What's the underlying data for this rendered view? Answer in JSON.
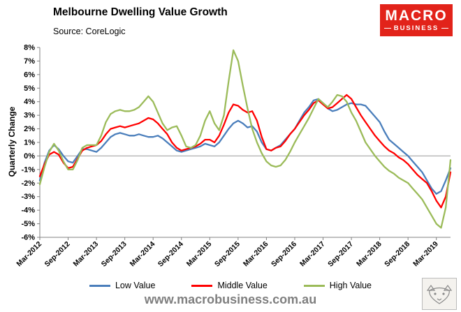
{
  "header": {
    "title": "Melbourne Dwelling Value Growth",
    "source": "Source: CoreLogic"
  },
  "logo": {
    "line1": "MACRO",
    "line2": "BUSINESS",
    "bg_color": "#e2231a"
  },
  "watermark": "www.macrobusiness.com.au",
  "chart_data": {
    "type": "line",
    "title": "Melbourne Dwelling Value Growth",
    "xlabel": "",
    "ylabel": "Quarterly Change",
    "ylim": [
      -6,
      8
    ],
    "ytick_step": 1,
    "ytick_suffix": "%",
    "grid": false,
    "zero_line": true,
    "legend_position": "bottom",
    "x_tick_every": 6,
    "x_labels": [
      "Mar-2012",
      "Sep-2012",
      "Mar-2013",
      "Sep-2013",
      "Mar-2014",
      "Sep-2014",
      "Mar-2015",
      "Sep-2015",
      "Mar-2016",
      "Sep-2016",
      "Mar-2017",
      "Sep-2017",
      "Mar-2018",
      "Sep-2018",
      "Mar-2019"
    ],
    "x_resolution": "monthly (Mar-2012 to Jun-2019)",
    "series": [
      {
        "name": "Low Value",
        "color": "#4a7ebb",
        "values": [
          -1.8,
          -0.5,
          0.4,
          0.8,
          0.5,
          0.0,
          -0.4,
          -0.5,
          0.0,
          0.5,
          0.5,
          0.4,
          0.3,
          0.6,
          1.0,
          1.4,
          1.6,
          1.7,
          1.6,
          1.5,
          1.5,
          1.6,
          1.5,
          1.4,
          1.4,
          1.5,
          1.3,
          1.0,
          0.7,
          0.4,
          0.3,
          0.4,
          0.5,
          0.6,
          0.7,
          0.9,
          0.8,
          0.7,
          1.0,
          1.5,
          2.0,
          2.4,
          2.6,
          2.4,
          2.1,
          2.2,
          1.8,
          1.0,
          0.5,
          0.4,
          0.6,
          0.8,
          1.2,
          1.6,
          2.0,
          2.6,
          3.2,
          3.6,
          4.1,
          4.2,
          3.9,
          3.5,
          3.3,
          3.4,
          3.6,
          3.8,
          3.9,
          3.8,
          3.8,
          3.7,
          3.3,
          2.9,
          2.5,
          1.8,
          1.2,
          0.9,
          0.6,
          0.3,
          0.0,
          -0.4,
          -0.8,
          -1.2,
          -1.8,
          -2.4,
          -2.8,
          -2.6,
          -1.8,
          -0.9
        ]
      },
      {
        "name": "Middle Value",
        "color": "#ff0000",
        "values": [
          -1.5,
          -0.6,
          0.1,
          0.3,
          0.1,
          -0.5,
          -0.9,
          -0.8,
          -0.2,
          0.4,
          0.6,
          0.7,
          0.8,
          1.1,
          1.6,
          2.0,
          2.1,
          2.2,
          2.1,
          2.2,
          2.3,
          2.4,
          2.6,
          2.8,
          2.7,
          2.4,
          2.0,
          1.6,
          1.0,
          0.6,
          0.4,
          0.5,
          0.6,
          0.7,
          0.9,
          1.2,
          1.2,
          1.0,
          1.5,
          2.3,
          3.2,
          3.8,
          3.7,
          3.4,
          3.2,
          3.3,
          2.6,
          1.4,
          0.5,
          0.4,
          0.6,
          0.7,
          1.1,
          1.6,
          2.0,
          2.5,
          3.0,
          3.4,
          3.9,
          4.1,
          3.8,
          3.5,
          3.6,
          3.9,
          4.2,
          4.5,
          4.2,
          3.6,
          3.0,
          2.5,
          2.0,
          1.5,
          1.1,
          0.7,
          0.4,
          0.2,
          -0.1,
          -0.3,
          -0.6,
          -1.0,
          -1.4,
          -1.7,
          -2.0,
          -2.6,
          -3.3,
          -3.8,
          -3.0,
          -1.2
        ]
      },
      {
        "name": "High Value",
        "color": "#9bbb59",
        "values": [
          -2.1,
          -0.8,
          0.3,
          0.9,
          0.4,
          -0.4,
          -1.0,
          -1.0,
          -0.3,
          0.6,
          0.8,
          0.8,
          0.8,
          1.5,
          2.5,
          3.1,
          3.3,
          3.4,
          3.3,
          3.3,
          3.4,
          3.6,
          4.0,
          4.4,
          4.0,
          3.2,
          2.4,
          1.9,
          2.1,
          2.2,
          1.5,
          0.7,
          0.6,
          0.8,
          1.5,
          2.6,
          3.3,
          2.4,
          1.9,
          3.0,
          5.5,
          7.8,
          7.0,
          5.2,
          3.5,
          2.0,
          1.0,
          0.2,
          -0.4,
          -0.7,
          -0.8,
          -0.7,
          -0.3,
          0.3,
          1.0,
          1.6,
          2.2,
          2.8,
          3.5,
          4.2,
          3.9,
          3.6,
          4.0,
          4.5,
          4.4,
          4.0,
          3.2,
          2.6,
          1.8,
          1.0,
          0.5,
          0.0,
          -0.4,
          -0.8,
          -1.1,
          -1.3,
          -1.6,
          -1.8,
          -2.0,
          -2.4,
          -2.8,
          -3.2,
          -3.8,
          -4.4,
          -5.0,
          -5.3,
          -3.8,
          -0.3
        ]
      }
    ]
  }
}
